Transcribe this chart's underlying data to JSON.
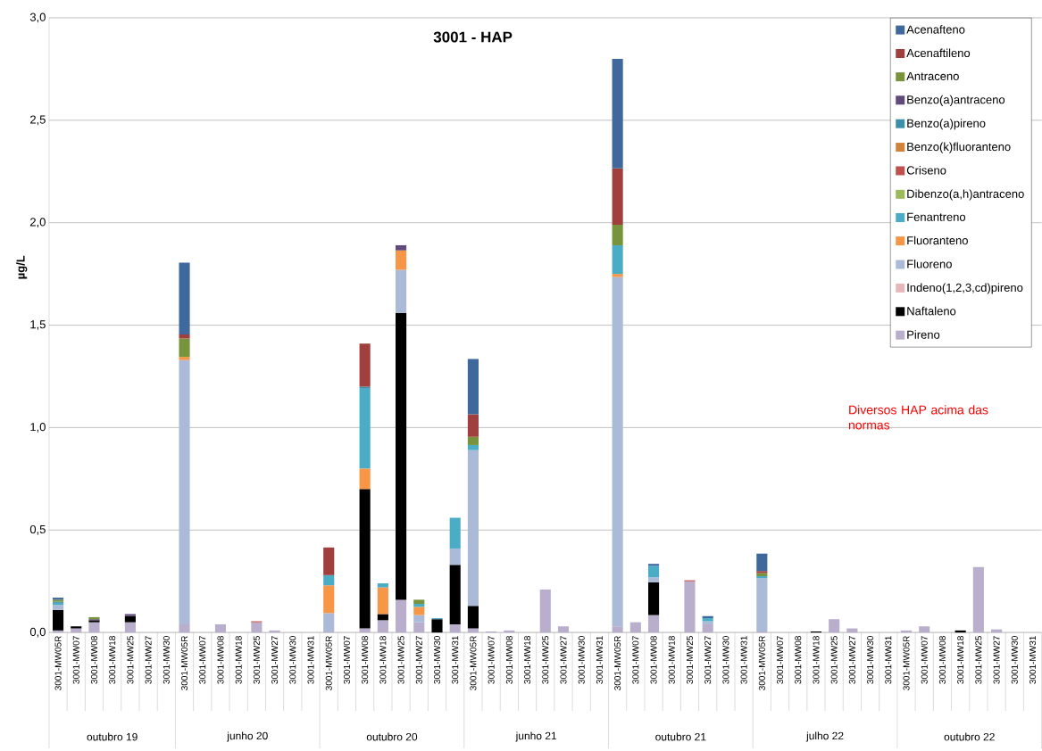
{
  "chart_data": {
    "type": "bar",
    "stacked": true,
    "title": "3001 - HAP",
    "ylabel": "µg/L",
    "categories": [
      "3001-MW05R",
      "3001-MW07",
      "3001-MW08",
      "3001-MW18",
      "3001-MW25",
      "3001-MW27",
      "3001-MW30",
      "3001-MW05R",
      "3001-MW07",
      "3001-MW08",
      "3001-MW18",
      "3001-MW25",
      "3001-MW27",
      "3001-MW30",
      "3001-MW31",
      "3001-MW05R",
      "3001-MW07",
      "3001-MW08",
      "3001-MW18",
      "3001-MW25",
      "3001-MW27",
      "3001-MW30",
      "3001-MW31",
      "3001-MW05R",
      "3001-MW07",
      "3001-MW08",
      "3001-MW18",
      "3001-MW25",
      "3001-MW27",
      "3001-MW30",
      "3001-MW31",
      "3001-MW05R",
      "3001-MW07",
      "3001-MW08",
      "3001-MW18",
      "3001-MW25",
      "3001-MW27",
      "3001-MW30",
      "3001-MW31",
      "3001-MW05R",
      "3001-MW07",
      "3001-MW08",
      "3001-MW18",
      "3001-MW25",
      "3001-MW27",
      "3001-MW30",
      "3001-MW31",
      "3001-MW05R",
      "3001-MW07",
      "3001-MW08",
      "3001-MW18",
      "3001-MW25",
      "3001-MW27",
      "3001-MW30",
      "3001-MW31"
    ],
    "annotations": [
      "outubro 19",
      "junho 20",
      "outubro 20",
      "junho 21",
      "outubro 21",
      "julho 22",
      "outubro 22",
      "Diversos HAP acima das normas"
    ],
    "ylim": [
      0,
      3
    ],
    "yticks": [
      {
        "value": 0,
        "label": "0,0"
      },
      {
        "value": 0.5,
        "label": "0,5"
      },
      {
        "value": 1,
        "label": "1,0"
      },
      {
        "value": 1.5,
        "label": "1,5"
      },
      {
        "value": 2,
        "label": "2,0"
      },
      {
        "value": 2.5,
        "label": "2,5"
      },
      {
        "value": 3,
        "label": "3,0"
      }
    ],
    "grid": "y",
    "legend": "top right",
    "series": [
      {
        "name": "Pireno",
        "color": "#b9afcc",
        "values": [
          0.01,
          0.02,
          0.05,
          null,
          0.05,
          null,
          null,
          0.04,
          null,
          0.04,
          null,
          0.05,
          0.01,
          null,
          null,
          0.005,
          null,
          0.02,
          0.06,
          0.16,
          0.05,
          null,
          0.04,
          0.02,
          0.005,
          0.01,
          null,
          0.21,
          0.03,
          null,
          null,
          0.03,
          0.05,
          0.085,
          null,
          0.25,
          0.04,
          null,
          null,
          0.005,
          null,
          null,
          null,
          0.065,
          0.02,
          null,
          null,
          0.01,
          0.03,
          null,
          null,
          0.32,
          0.015,
          null,
          null
        ]
      },
      {
        "name": "Naftaleno",
        "color": "#000000",
        "values": [
          0.1,
          0.01,
          0.01,
          null,
          0.03,
          null,
          null,
          null,
          null,
          null,
          null,
          null,
          null,
          null,
          null,
          null,
          null,
          0.68,
          0.03,
          1.4,
          null,
          0.065,
          0.29,
          0.11,
          null,
          null,
          null,
          null,
          null,
          null,
          null,
          null,
          null,
          0.16,
          null,
          null,
          null,
          null,
          null,
          null,
          null,
          null,
          0.005,
          null,
          null,
          null,
          null,
          null,
          null,
          null,
          0.01,
          null,
          null,
          null,
          null
        ]
      },
      {
        "name": "Indeno(1,2,3,cd)pireno",
        "color": "#e6b9b8",
        "values": [
          null,
          null,
          null,
          null,
          null,
          null,
          null,
          null,
          null,
          null,
          null,
          null,
          null,
          null,
          null,
          null,
          null,
          null,
          null,
          null,
          null,
          null,
          null,
          null,
          null,
          null,
          null,
          null,
          null,
          null,
          null,
          null,
          null,
          null,
          null,
          null,
          null,
          null,
          null,
          null,
          null,
          null,
          null,
          null,
          null,
          null,
          null,
          null,
          null,
          null,
          null,
          null,
          null,
          null,
          null
        ]
      },
      {
        "name": "Fluoreno",
        "color": "#aabad7",
        "values": [
          0.025,
          null,
          null,
          null,
          null,
          null,
          null,
          1.29,
          null,
          null,
          null,
          null,
          null,
          null,
          null,
          0.09,
          null,
          null,
          null,
          0.21,
          0.035,
          null,
          0.08,
          0.76,
          null,
          null,
          null,
          null,
          null,
          null,
          null,
          1.705,
          null,
          0.025,
          null,
          null,
          0.015,
          null,
          null,
          0.26,
          null,
          null,
          null,
          null,
          null,
          null,
          null,
          null,
          null,
          null,
          null,
          null,
          null,
          null,
          null
        ]
      },
      {
        "name": "Fluoranteno",
        "color": "#f79646",
        "values": [
          null,
          null,
          null,
          null,
          null,
          null,
          null,
          0.015,
          null,
          null,
          null,
          null,
          null,
          null,
          null,
          0.135,
          null,
          0.1,
          0.13,
          0.095,
          0.04,
          null,
          null,
          null,
          null,
          null,
          null,
          null,
          null,
          null,
          null,
          0.015,
          null,
          null,
          null,
          null,
          null,
          null,
          null,
          null,
          null,
          null,
          null,
          null,
          null,
          null,
          null,
          null,
          null,
          null,
          null,
          null,
          null,
          null,
          null
        ]
      },
      {
        "name": "Fenantreno",
        "color": "#4bacc6",
        "values": [
          0.01,
          null,
          null,
          null,
          null,
          null,
          null,
          null,
          null,
          null,
          null,
          null,
          null,
          null,
          null,
          0.05,
          null,
          0.39,
          0.02,
          null,
          0.015,
          0.005,
          0.15,
          0.025,
          null,
          null,
          null,
          null,
          null,
          null,
          null,
          0.14,
          null,
          0.055,
          null,
          null,
          0.015,
          null,
          null,
          0.01,
          null,
          null,
          null,
          null,
          null,
          null,
          null,
          null,
          null,
          null,
          null,
          null,
          null,
          null,
          null
        ]
      },
      {
        "name": "Dibenzo(a,h)antraceno",
        "color": "#9bbb59",
        "values": [
          null,
          null,
          null,
          null,
          null,
          null,
          null,
          null,
          null,
          null,
          null,
          null,
          null,
          null,
          null,
          null,
          null,
          null,
          null,
          null,
          null,
          null,
          null,
          null,
          null,
          null,
          null,
          null,
          null,
          null,
          null,
          null,
          null,
          null,
          null,
          null,
          null,
          null,
          null,
          null,
          null,
          null,
          null,
          null,
          null,
          null,
          null,
          null,
          null,
          null,
          null,
          null,
          null,
          null,
          null
        ]
      },
      {
        "name": "Criseno",
        "color": "#c0504d",
        "values": [
          null,
          null,
          null,
          null,
          null,
          null,
          null,
          null,
          null,
          null,
          null,
          0.005,
          null,
          null,
          null,
          null,
          null,
          null,
          null,
          null,
          null,
          null,
          null,
          null,
          null,
          null,
          null,
          null,
          null,
          null,
          null,
          null,
          null,
          null,
          null,
          0.005,
          null,
          null,
          null,
          null,
          null,
          null,
          null,
          null,
          null,
          null,
          null,
          null,
          null,
          null,
          null,
          null,
          null,
          null,
          null
        ]
      },
      {
        "name": "Benzo(k)fluoranteno",
        "color": "#d3823a",
        "values": [
          null,
          null,
          null,
          null,
          null,
          null,
          null,
          null,
          null,
          null,
          null,
          null,
          null,
          null,
          null,
          null,
          null,
          null,
          null,
          null,
          null,
          null,
          null,
          null,
          null,
          null,
          null,
          null,
          null,
          null,
          null,
          null,
          null,
          null,
          null,
          null,
          null,
          null,
          null,
          null,
          null,
          null,
          null,
          null,
          null,
          null,
          null,
          null,
          null,
          null,
          null,
          null,
          null,
          null,
          null
        ]
      },
      {
        "name": "Benzo(a)pireno",
        "color": "#3b8fa8",
        "values": [
          0.005,
          null,
          null,
          null,
          null,
          null,
          null,
          null,
          null,
          null,
          null,
          null,
          null,
          null,
          null,
          null,
          null,
          0.01,
          null,
          null,
          null,
          null,
          null,
          null,
          null,
          null,
          null,
          null,
          null,
          null,
          null,
          null,
          null,
          null,
          null,
          null,
          null,
          null,
          null,
          null,
          null,
          null,
          null,
          null,
          null,
          null,
          null,
          null,
          null,
          null,
          null,
          null,
          null,
          null,
          null
        ]
      },
      {
        "name": "Benzo(a)antraceno",
        "color": "#604a7b",
        "values": [
          null,
          null,
          0.005,
          null,
          0.01,
          null,
          null,
          null,
          null,
          null,
          null,
          null,
          null,
          null,
          null,
          null,
          null,
          null,
          null,
          0.025,
          null,
          null,
          null,
          null,
          null,
          null,
          null,
          null,
          null,
          null,
          null,
          null,
          null,
          null,
          null,
          null,
          null,
          null,
          null,
          null,
          null,
          null,
          null,
          null,
          null,
          null,
          null,
          null,
          null,
          null,
          null,
          null,
          null,
          null,
          null
        ]
      },
      {
        "name": "Antraceno",
        "color": "#77933c",
        "values": [
          0.01,
          null,
          0.01,
          null,
          null,
          null,
          null,
          0.09,
          null,
          null,
          null,
          null,
          null,
          null,
          null,
          null,
          null,
          null,
          null,
          null,
          0.02,
          null,
          null,
          0.04,
          null,
          null,
          null,
          null,
          null,
          null,
          null,
          0.1,
          null,
          null,
          null,
          null,
          null,
          null,
          null,
          0.015,
          null,
          null,
          null,
          null,
          null,
          null,
          null,
          null,
          null,
          null,
          null,
          null,
          null,
          null,
          null
        ]
      },
      {
        "name": "Acenaftileno",
        "color": "#a0403e",
        "values": [
          null,
          null,
          null,
          null,
          null,
          null,
          null,
          0.02,
          null,
          null,
          null,
          null,
          null,
          null,
          null,
          0.135,
          null,
          0.21,
          null,
          null,
          null,
          null,
          null,
          0.11,
          null,
          null,
          null,
          null,
          null,
          null,
          null,
          0.275,
          null,
          null,
          null,
          null,
          null,
          null,
          null,
          0.01,
          null,
          null,
          null,
          null,
          null,
          null,
          null,
          null,
          null,
          null,
          null,
          null,
          null,
          null,
          null
        ]
      },
      {
        "name": "Acenafteno",
        "color": "#3f689c",
        "values": [
          0.01,
          null,
          null,
          null,
          null,
          null,
          null,
          0.35,
          null,
          null,
          null,
          null,
          null,
          null,
          null,
          null,
          null,
          null,
          null,
          null,
          null,
          null,
          null,
          0.27,
          null,
          null,
          null,
          null,
          null,
          null,
          null,
          0.535,
          null,
          0.01,
          null,
          null,
          0.01,
          null,
          null,
          0.085,
          null,
          null,
          null,
          null,
          null,
          null,
          null,
          null,
          null,
          null,
          null,
          null,
          null,
          null,
          null
        ]
      }
    ]
  }
}
